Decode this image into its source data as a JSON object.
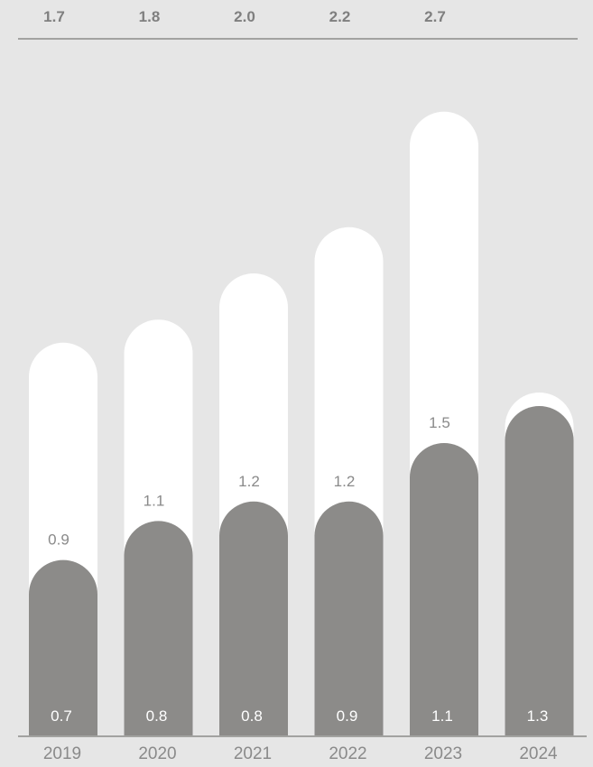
{
  "colors": {
    "background": "#e6e6e6",
    "total_bar": "#ffffff",
    "base_bar": "#8c8b89",
    "total_label": "#7f7f7f",
    "mid_label": "#8a8a8a",
    "base_label": "#ffffff",
    "axis_line": "#8c8b89",
    "year_label": "#8a8a8a"
  },
  "chart_data": {
    "type": "bar",
    "stacked_overlay": true,
    "categories": [
      "2019",
      "2020",
      "2021",
      "2022",
      "2023",
      "2024"
    ],
    "series": [
      {
        "values": [
          1.7,
          1.8,
          2.0,
          2.2,
          2.7,
          1.3
        ]
      },
      {
        "values": [
          0.7,
          0.8,
          0.8,
          0.9,
          1.1,
          1.3
        ]
      }
    ],
    "total_labels": [
      "1.7",
      "1.8",
      "2.0",
      "2.2",
      "2.7",
      ""
    ],
    "mid_labels": [
      "0.9",
      "1.1",
      "1.2",
      "1.2",
      "1.5",
      ""
    ],
    "base_labels": [
      "0.7",
      "0.8",
      "0.8",
      "0.9",
      "1.1",
      "1.3"
    ],
    "title": "",
    "xlabel": "",
    "ylabel": "",
    "grid": false,
    "legend": "none"
  }
}
